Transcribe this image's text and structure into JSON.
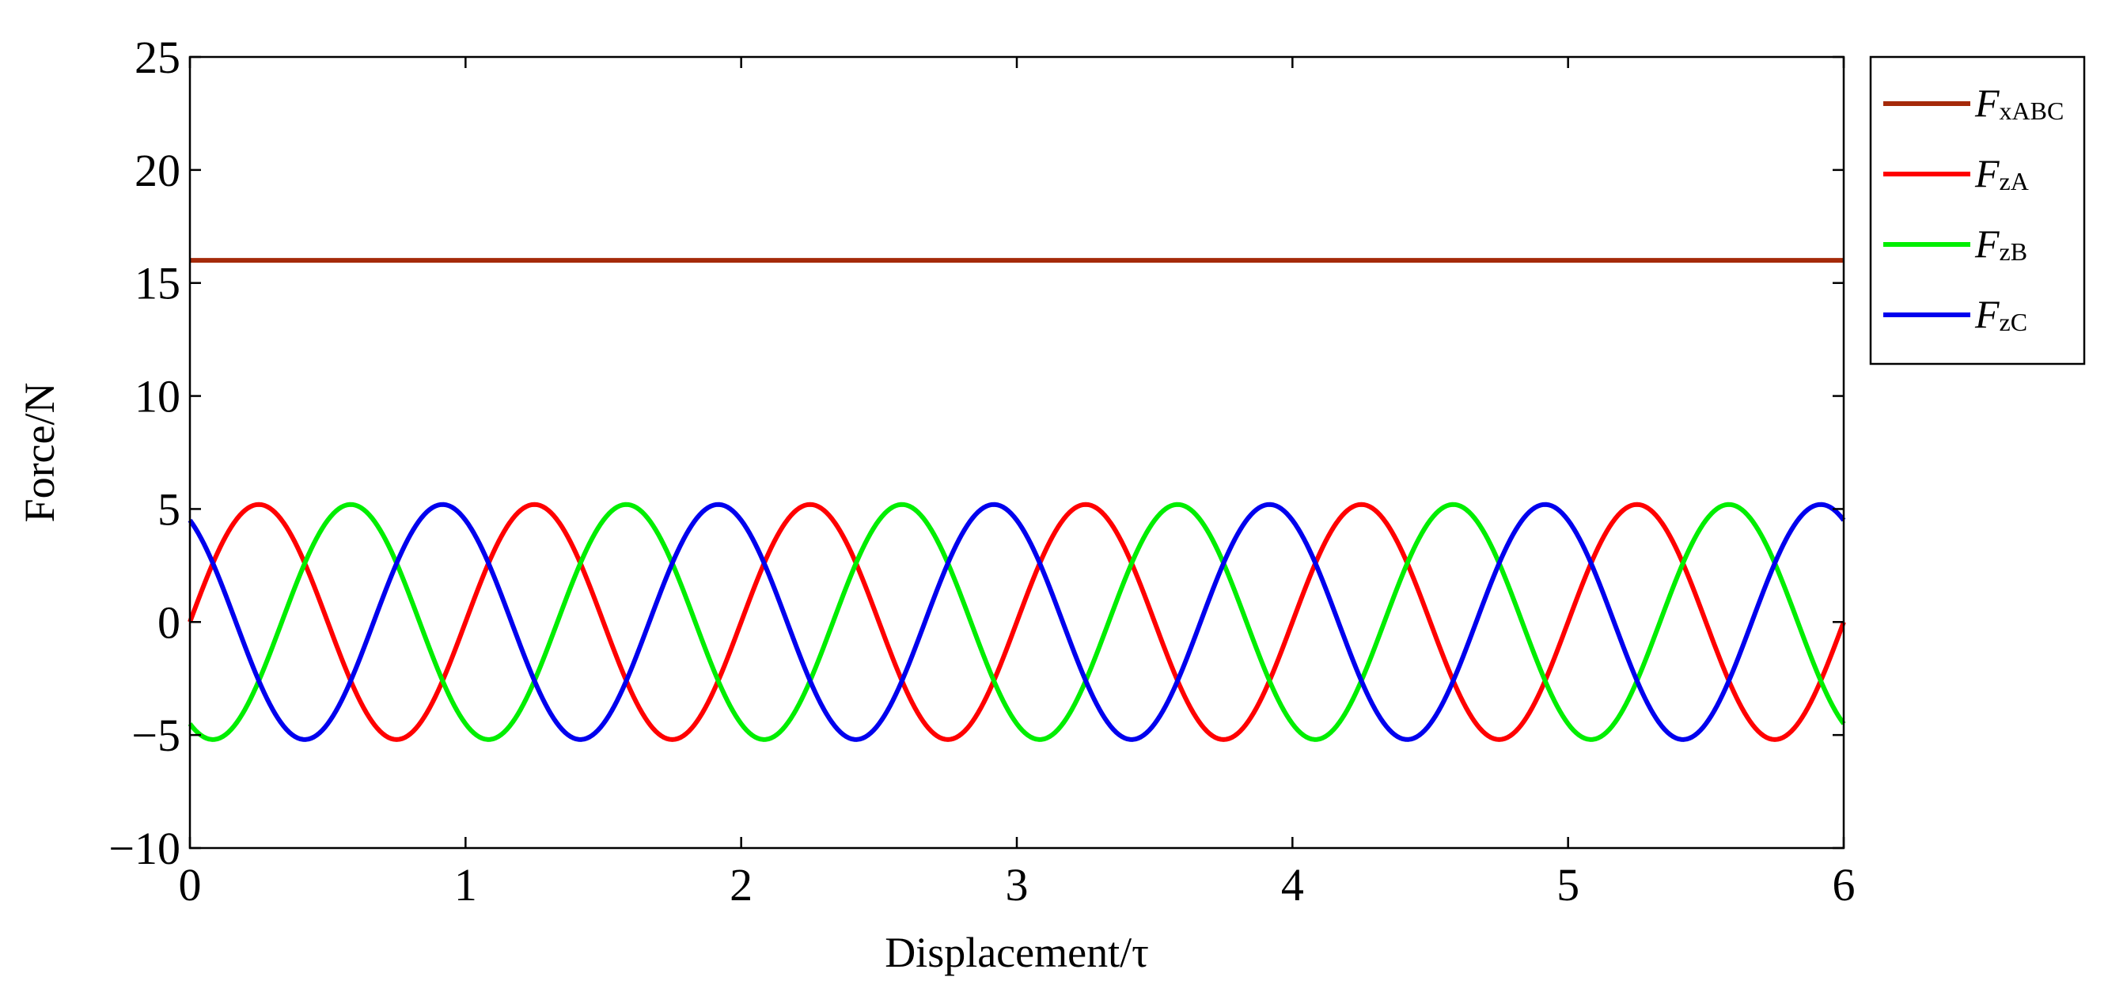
{
  "chart_data": {
    "type": "line",
    "title": "",
    "xlabel": "Displacement/τ",
    "ylabel": "Force/N",
    "xlim": [
      0,
      6
    ],
    "ylim": [
      -10,
      25
    ],
    "xticks": [
      0,
      1,
      2,
      3,
      4,
      5,
      6
    ],
    "yticks": [
      -10,
      -5,
      0,
      5,
      10,
      15,
      20,
      25
    ],
    "xtick_labels": [
      "0",
      "1",
      "2",
      "3",
      "4",
      "5",
      "6"
    ],
    "ytick_labels": [
      "−10",
      "−5",
      "0",
      "5",
      "10",
      "15",
      "20",
      "25"
    ],
    "grid": false,
    "legend_position": "outside-right-top",
    "series": [
      {
        "name": "F",
        "subscript": "xABC",
        "color": "#a52a0a",
        "form": "constant",
        "value": 16,
        "x": [
          0,
          6
        ],
        "y": [
          16,
          16
        ]
      },
      {
        "name": "F",
        "subscript": "zA",
        "color": "#ff0000",
        "form": "sinusoid",
        "amplitude": 5.2,
        "period": 1,
        "phase_deg": 0,
        "x": [
          0,
          0.25,
          0.5,
          0.75,
          1,
          1.25,
          1.5,
          1.75,
          2,
          2.25,
          2.5,
          2.75,
          3,
          3.25,
          3.5,
          3.75,
          4,
          4.25,
          4.5,
          4.75,
          5,
          5.25,
          5.5,
          5.75,
          6
        ],
        "y": [
          0,
          5.2,
          0,
          -5.2,
          0,
          5.2,
          0,
          -5.2,
          0,
          5.2,
          0,
          -5.2,
          0,
          5.2,
          0,
          -5.2,
          0,
          5.2,
          0,
          -5.2,
          0,
          5.2,
          0,
          -5.2,
          0
        ]
      },
      {
        "name": "F",
        "subscript": "zB",
        "color": "#00ee00",
        "form": "sinusoid",
        "amplitude": 5.2,
        "period": 1,
        "phase_deg": -120,
        "x": [
          0,
          0.1,
          0.333,
          0.6,
          0.833,
          1.1,
          1.333,
          1.6,
          1.833,
          2.1,
          2.333,
          2.6,
          2.833,
          3.1,
          3.333,
          3.6,
          3.833,
          4.1,
          4.333,
          4.6,
          4.833,
          5.1,
          5.333,
          5.6,
          5.833,
          6
        ],
        "y": [
          -4.5,
          -5.2,
          0,
          5.2,
          0,
          -5.2,
          0,
          5.2,
          0,
          -5.2,
          0,
          5.2,
          0,
          -5.2,
          0,
          5.2,
          0,
          -5.2,
          0,
          5.2,
          0,
          -5.2,
          0,
          5.2,
          0,
          -4.5
        ]
      },
      {
        "name": "F",
        "subscript": "zC",
        "color": "#0000ee",
        "form": "sinusoid",
        "amplitude": 5.2,
        "period": 1,
        "phase_deg": 120,
        "x": [
          0,
          0.167,
          0.433,
          0.667,
          0.933,
          1.167,
          1.433,
          1.667,
          1.933,
          2.167,
          2.433,
          2.667,
          2.933,
          3.167,
          3.433,
          3.667,
          3.933,
          4.167,
          4.433,
          4.667,
          4.933,
          5.167,
          5.433,
          5.667,
          5.933,
          6
        ],
        "y": [
          4.5,
          0,
          -5.2,
          0,
          5.2,
          0,
          -5.2,
          0,
          5.2,
          0,
          -5.2,
          0,
          5.2,
          0,
          -5.2,
          0,
          5.2,
          0,
          -5.2,
          0,
          5.2,
          0,
          -5.2,
          0,
          5.2,
          4.5
        ]
      }
    ]
  }
}
